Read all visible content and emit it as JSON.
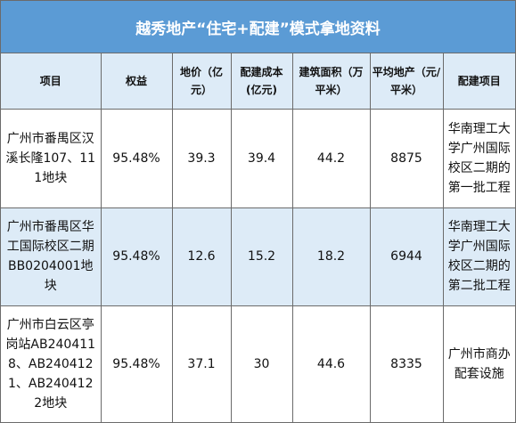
{
  "title": "越秀地产“住宅+配建”模式拿地资料",
  "columns": [
    "项目",
    "权益",
    "地价（亿元）",
    "配建成本(亿元)",
    "建筑面积（万平米）",
    "平均地产（元/平米）",
    "配建项目"
  ],
  "rows": [
    {
      "project": "广州市番禺区汉溪长隆107、111地块",
      "equity": "95.48%",
      "land_price": "39.3",
      "construction_cost": "39.4",
      "floor_area": "44.2",
      "avg_price": "8875",
      "supporting": "华南理工大学广州国际校区二期的第一批工程"
    },
    {
      "project": "广州市番禺区华工国际校区二期BB0204001地块",
      "equity": "95.48%",
      "land_price": "12.6",
      "construction_cost": "15.2",
      "floor_area": "18.2",
      "avg_price": "6944",
      "supporting": "华南理工大学广州国际校区二期的第二批工程"
    },
    {
      "project": "广州市白云区亭岗站AB2404118、AB2404121、AB2404122地块",
      "equity": "95.48%",
      "land_price": "37.1",
      "construction_cost": "30",
      "floor_area": "44.6",
      "avg_price": "8335",
      "supporting": "广州市商办配套设施"
    }
  ]
}
